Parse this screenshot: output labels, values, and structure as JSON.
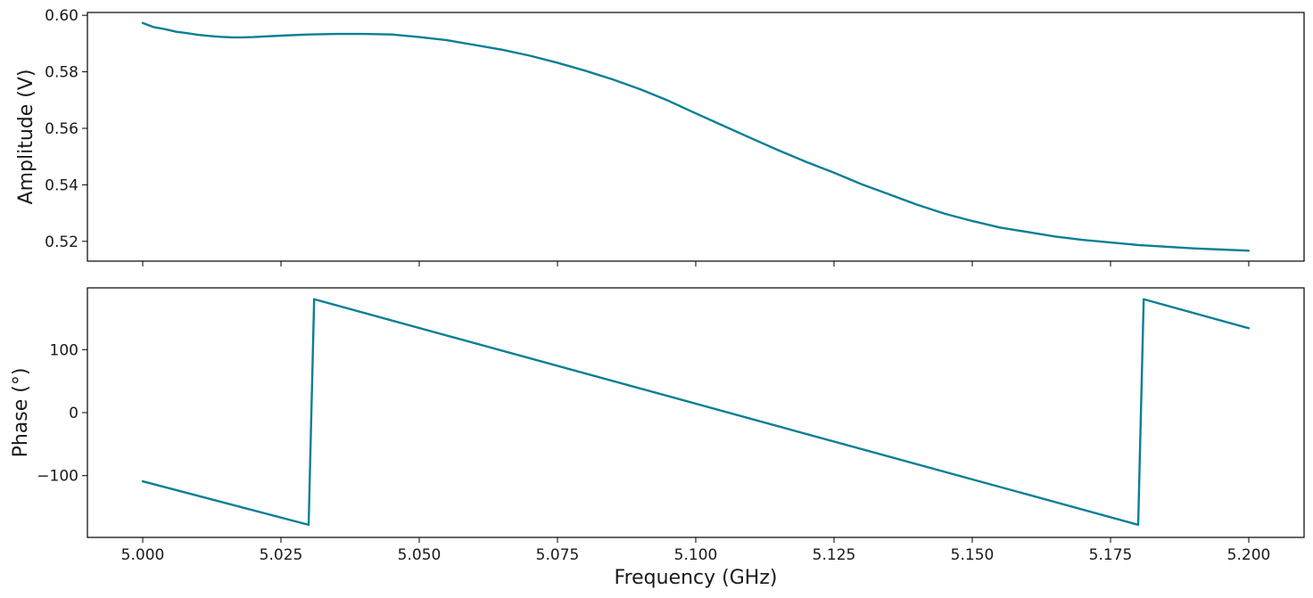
{
  "series_color": "#0a7f94",
  "chart_data": [
    {
      "type": "line",
      "panel": "top",
      "title": "",
      "xlabel": "",
      "ylabel": "Amplitude (V)",
      "xlim": [
        4.99,
        5.21
      ],
      "ylim": [
        0.513,
        0.601
      ],
      "xticks": [
        5.0,
        5.025,
        5.05,
        5.075,
        5.1,
        5.125,
        5.15,
        5.175,
        5.2
      ],
      "xtick_labels_visible": false,
      "yticks": [
        0.52,
        0.54,
        0.56,
        0.58,
        0.6
      ],
      "ytick_labels": [
        "0.52",
        "0.54",
        "0.56",
        "0.58",
        "0.60"
      ],
      "grid": false,
      "series": [
        {
          "name": "Amplitude",
          "x": [
            5.0,
            5.002,
            5.004,
            5.006,
            5.008,
            5.01,
            5.012,
            5.014,
            5.016,
            5.018,
            5.02,
            5.025,
            5.03,
            5.035,
            5.04,
            5.045,
            5.05,
            5.055,
            5.06,
            5.065,
            5.07,
            5.075,
            5.08,
            5.085,
            5.09,
            5.095,
            5.1,
            5.105,
            5.11,
            5.115,
            5.12,
            5.125,
            5.13,
            5.135,
            5.14,
            5.145,
            5.15,
            5.155,
            5.16,
            5.165,
            5.17,
            5.175,
            5.18,
            5.185,
            5.19,
            5.195,
            5.2
          ],
          "y": [
            0.5973,
            0.5958,
            0.5951,
            0.5942,
            0.5937,
            0.5931,
            0.5927,
            0.5924,
            0.5922,
            0.5922,
            0.5923,
            0.5928,
            0.5932,
            0.5934,
            0.5934,
            0.5932,
            0.5923,
            0.5912,
            0.5895,
            0.5878,
            0.5857,
            0.5832,
            0.5804,
            0.5773,
            0.5738,
            0.5698,
            0.5653,
            0.5609,
            0.5565,
            0.5522,
            0.5481,
            0.5443,
            0.5402,
            0.5366,
            0.533,
            0.5298,
            0.5272,
            0.5249,
            0.5233,
            0.5217,
            0.5205,
            0.5196,
            0.5187,
            0.5181,
            0.5175,
            0.5171,
            0.5167
          ]
        }
      ]
    },
    {
      "type": "line",
      "panel": "bottom",
      "title": "",
      "xlabel": "Frequency (GHz)",
      "ylabel": "Phase (°)",
      "xlim": [
        4.99,
        5.21
      ],
      "ylim": [
        -198,
        198
      ],
      "xticks": [
        5.0,
        5.025,
        5.05,
        5.075,
        5.1,
        5.125,
        5.15,
        5.175,
        5.2
      ],
      "xtick_labels": [
        "5.000",
        "5.025",
        "5.050",
        "5.075",
        "5.100",
        "5.125",
        "5.150",
        "5.175",
        "5.200"
      ],
      "yticks": [
        -100,
        0,
        100
      ],
      "ytick_labels": [
        "−100",
        "0",
        "100"
      ],
      "grid": false,
      "series": [
        {
          "name": "Phase",
          "x": [
            5.0,
            5.03,
            5.031,
            5.18,
            5.181,
            5.2
          ],
          "y": [
            -109,
            -178,
            180,
            -178,
            180,
            134
          ]
        }
      ]
    }
  ]
}
